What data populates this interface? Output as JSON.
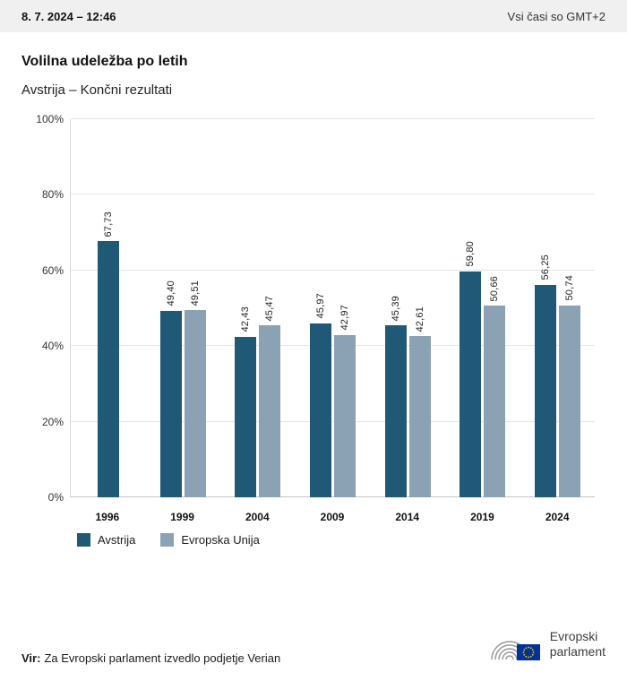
{
  "header": {
    "datetime": "8. 7. 2024 – 12:46",
    "timezone": "Vsi časi so GMT+2"
  },
  "title": "Volilna udeležba po letih",
  "subtitle": "Avstrija – Končni rezultati",
  "chart_data": {
    "type": "bar",
    "title": "Volilna udeležba po letih",
    "subtitle": "Avstrija – Končni rezultati",
    "categories": [
      "1996",
      "1999",
      "2004",
      "2009",
      "2014",
      "2019",
      "2024"
    ],
    "series": [
      {
        "name": "Avstrija",
        "color": "#1f5976",
        "values": [
          67.73,
          49.4,
          42.43,
          45.97,
          45.39,
          59.8,
          56.25
        ],
        "labels": [
          "67,73",
          "49,40",
          "42,43",
          "45,97",
          "45,39",
          "59,80",
          "56,25"
        ]
      },
      {
        "name": "Evropska Unija",
        "color": "#8aa2b3",
        "values": [
          null,
          49.51,
          45.47,
          42.97,
          42.61,
          50.66,
          50.74
        ],
        "labels": [
          null,
          "49,51",
          "45,47",
          "42,97",
          "42,61",
          "50,66",
          "50,74"
        ]
      }
    ],
    "ylim": [
      0,
      100
    ],
    "yticks": [
      {
        "value": 0,
        "label": "0%"
      },
      {
        "value": 20,
        "label": "20%"
      },
      {
        "value": 40,
        "label": "40%"
      },
      {
        "value": 60,
        "label": "60%"
      },
      {
        "value": 80,
        "label": "80%"
      },
      {
        "value": 100,
        "label": "100%"
      }
    ],
    "grid": true,
    "legend_position": "bottom"
  },
  "footer": {
    "source_label": "Vir:",
    "source_text": "Za Evropski parlament izvedlo podjetje Verian",
    "logo": {
      "line1": "Evropski",
      "line2": "parlament"
    }
  }
}
